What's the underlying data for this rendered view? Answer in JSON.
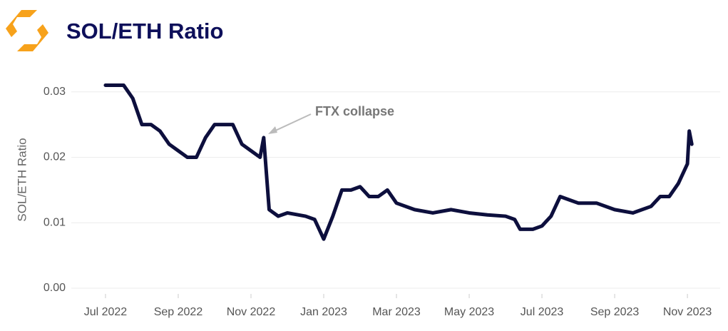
{
  "chart_data": {
    "type": "line",
    "title": "SOL/ETH Ratio",
    "ylabel": "SOL/ETH Ratio",
    "annotation": "FTX collapse",
    "x": [
      0,
      0.25,
      0.5,
      0.75,
      1.0,
      1.25,
      1.5,
      1.75,
      2.0,
      2.25,
      2.5,
      2.75,
      3.0,
      3.25,
      3.5,
      3.75,
      4.0,
      4.25,
      4.35,
      4.5,
      4.75,
      5.0,
      5.5,
      5.75,
      6.0,
      6.25,
      6.5,
      6.75,
      7.0,
      7.25,
      7.5,
      7.75,
      8.0,
      8.5,
      9.0,
      9.5,
      10.0,
      10.5,
      11.0,
      11.25,
      11.4,
      11.75,
      12.0,
      12.25,
      12.5,
      12.75,
      13.0,
      13.5,
      14.0,
      14.5,
      15.0,
      15.25,
      15.5,
      15.75,
      16.0,
      16.05,
      16.12
    ],
    "series": [
      {
        "name": "SOL/ETH Ratio",
        "color": "#0d0f3d",
        "values": [
          0.031,
          0.031,
          0.031,
          0.029,
          0.025,
          0.025,
          0.024,
          0.022,
          0.021,
          0.02,
          0.02,
          0.023,
          0.025,
          0.025,
          0.025,
          0.022,
          0.021,
          0.02,
          0.023,
          0.012,
          0.011,
          0.0115,
          0.011,
          0.0105,
          0.0075,
          0.011,
          0.015,
          0.015,
          0.0155,
          0.014,
          0.014,
          0.015,
          0.013,
          0.012,
          0.0115,
          0.012,
          0.0115,
          0.0112,
          0.011,
          0.0105,
          0.009,
          0.009,
          0.0095,
          0.011,
          0.014,
          0.0135,
          0.013,
          0.013,
          0.012,
          0.0115,
          0.0125,
          0.014,
          0.014,
          0.016,
          0.019,
          0.024,
          0.022
        ]
      }
    ],
    "xlim": [
      -0.94,
      16.9
    ],
    "xticks": [
      {
        "value": 0,
        "label": "Jul 2022"
      },
      {
        "value": 2,
        "label": "Sep 2022"
      },
      {
        "value": 4,
        "label": "Nov 2022"
      },
      {
        "value": 6,
        "label": "Jan 2023"
      },
      {
        "value": 8,
        "label": "Mar 2023"
      },
      {
        "value": 10,
        "label": "May 2023"
      },
      {
        "value": 12,
        "label": "Jul 2023"
      },
      {
        "value": 14,
        "label": "Sep 2023"
      },
      {
        "value": 16,
        "label": "Nov 2023"
      }
    ],
    "ylim": [
      0,
      0.034
    ],
    "yticks": [
      {
        "value": 0,
        "label": "0.00"
      },
      0.01,
      0.02,
      0.03
    ],
    "grid": true
  }
}
